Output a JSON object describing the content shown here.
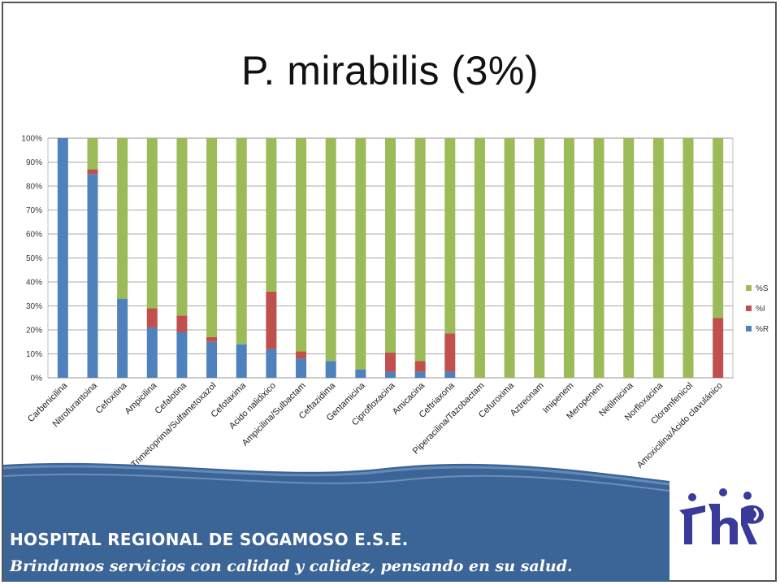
{
  "header": {
    "title": "P. mirabilis (3%)"
  },
  "footer": {
    "hospital_name": "HOSPITAL REGIONAL DE SOGAMOSO E.S.E.",
    "slogan": "Brindamos servicios con calidad y calidez, pensando en su salud."
  },
  "colors": {
    "R": "#4F81BD",
    "I": "#C0504D",
    "S": "#9BBB59",
    "footer_band": "#3C6597",
    "logo": "#3A3A9A"
  },
  "chart_data": {
    "type": "bar",
    "stacked": true,
    "ylim": [
      0,
      100
    ],
    "yticks": [
      "0%",
      "10%",
      "20%",
      "30%",
      "40%",
      "50%",
      "60%",
      "70%",
      "80%",
      "90%",
      "100%"
    ],
    "grid": true,
    "legend_position": "right",
    "categories": [
      "Carbenicilina",
      "Nitrofurantoina",
      "Cefoxitina",
      "Ampicilina",
      "Cefalotina",
      "Trimetoprima/Sulfametoxazol",
      "Cefotaxima",
      "Acido nalidixico",
      "Ampicilina/Sulbactam",
      "Ceftazidima",
      "Gentamicina",
      "Ciprofloxacina",
      "Amicacina",
      "Ceftriaxona",
      "Piperacilina/Tazobactam",
      "Cefuroxima",
      "Aztreonam",
      "Imipenem",
      "Meropenem",
      "Netilmicina",
      "Norfloxacina",
      "Cloramfenicol",
      "Amoxicilina/Ácido clavulánico"
    ],
    "series": [
      {
        "name": "%R",
        "key": "R",
        "values": [
          100,
          85,
          33,
          21,
          19,
          15,
          14,
          12,
          8,
          7,
          3.5,
          2.5,
          2.5,
          2.5,
          0,
          0,
          0,
          0,
          0,
          0,
          0,
          0,
          0
        ]
      },
      {
        "name": "%I",
        "key": "I",
        "values": [
          0,
          2,
          0,
          8,
          7,
          2,
          0,
          24,
          3,
          0,
          0,
          8,
          4.5,
          16,
          0,
          0,
          0,
          0,
          0,
          0,
          0,
          0,
          25
        ]
      },
      {
        "name": "%S",
        "key": "S",
        "values": [
          0,
          13,
          67,
          71,
          74,
          83,
          86,
          64,
          89,
          93,
          96.5,
          89.5,
          93,
          81.5,
          100,
          100,
          100,
          100,
          100,
          100,
          100,
          100,
          75
        ]
      }
    ],
    "legend": [
      "%S",
      "%I",
      "%R"
    ]
  }
}
